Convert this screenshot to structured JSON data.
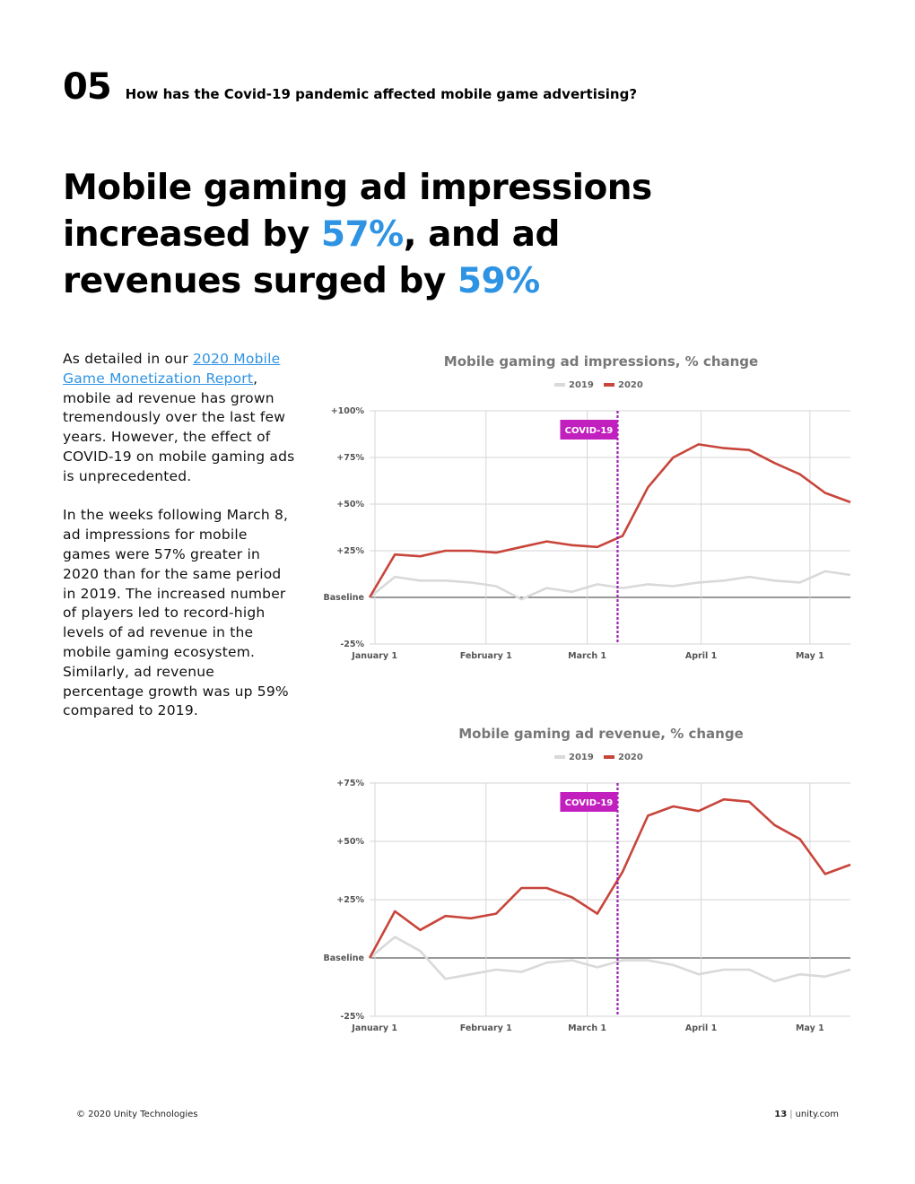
{
  "section": {
    "number": "05",
    "question": "How has the Covid-19 pandemic affected mobile game advertising?"
  },
  "headline": {
    "part1": "Mobile gaming ad impressions increased by ",
    "highlight1": "57%",
    "part2": ", and ad revenues surged by ",
    "highlight2": "59%"
  },
  "body": {
    "p1_prefix": "As detailed in our ",
    "p1_link": "2020 Mobile Game Monetization Report",
    "p1_suffix": ", mobile ad revenue has grown tremendously over the last few years. However, the effect of COVID-19 on mobile gaming ads is unprecedented.",
    "p2": "In the weeks following March 8, ad impressions for mobile games were 57% greater in 2020 than for the same period in 2019. The increased number of players led to record-high levels of ad revenue in the mobile gaming ecosystem. Similarly, ad revenue percentage growth was up 59% compared to 2019."
  },
  "chart_data": [
    {
      "type": "line",
      "title": "Mobile gaming ad impressions, % change",
      "legend": [
        "2019",
        "2020"
      ],
      "legend_position": "top-center",
      "ytick_labels": [
        "+100%",
        "+75%",
        "+50%",
        "+25%",
        "Baseline",
        "-25%"
      ],
      "ytick_values": [
        100,
        75,
        50,
        25,
        0,
        -25
      ],
      "ylim": [
        -25,
        100
      ],
      "xtick_labels": [
        "January 1",
        "February 1",
        "March 1",
        "April 1",
        "May 1"
      ],
      "xtick_weeks": [
        0.2,
        4.6,
        8.6,
        13.1,
        17.4
      ],
      "xlim": [
        0,
        19
      ],
      "annotation": {
        "label": "COVID-19",
        "week": 9.8
      },
      "x_weeks": [
        0,
        1,
        2,
        3,
        4,
        5,
        6,
        7,
        8,
        9,
        10,
        11,
        12,
        13,
        14,
        15,
        16,
        17,
        18,
        19
      ],
      "series": [
        {
          "name": "2019",
          "color": "#d9d9d9",
          "values": [
            0,
            11,
            9,
            9,
            8,
            6,
            -1,
            5,
            3,
            7,
            5,
            7,
            6,
            8,
            9,
            11,
            9,
            8,
            14,
            12
          ]
        },
        {
          "name": "2020",
          "color": "#c8453b",
          "values": [
            0,
            23,
            22,
            25,
            25,
            24,
            27,
            30,
            28,
            27,
            33,
            59,
            75,
            82,
            80,
            79,
            72,
            66,
            56,
            51
          ]
        }
      ],
      "grid": true
    },
    {
      "type": "line",
      "title": "Mobile gaming ad revenue, % change",
      "legend": [
        "2019",
        "2020"
      ],
      "legend_position": "top-center",
      "ytick_labels": [
        "+75%",
        "+50%",
        "+25%",
        "Baseline",
        "-25%"
      ],
      "ytick_values": [
        75,
        50,
        25,
        0,
        -25
      ],
      "ylim": [
        -25,
        75
      ],
      "xtick_labels": [
        "January 1",
        "February 1",
        "March 1",
        "April 1",
        "May 1"
      ],
      "xtick_weeks": [
        0.2,
        4.6,
        8.6,
        13.1,
        17.4
      ],
      "xlim": [
        0,
        19
      ],
      "annotation": {
        "label": "COVID-19",
        "week": 9.8
      },
      "x_weeks": [
        0,
        1,
        2,
        3,
        4,
        5,
        6,
        7,
        8,
        9,
        10,
        11,
        12,
        13,
        14,
        15,
        16,
        17,
        18,
        19
      ],
      "series": [
        {
          "name": "2019",
          "color": "#d9d9d9",
          "values": [
            0,
            9,
            3,
            -9,
            -7,
            -5,
            -6,
            -2,
            -1,
            -4,
            -1,
            -1,
            -3,
            -7,
            -5,
            -5,
            -10,
            -7,
            -8,
            -5
          ]
        },
        {
          "name": "2020",
          "color": "#c8453b",
          "values": [
            0,
            20,
            12,
            18,
            17,
            19,
            30,
            30,
            26,
            19,
            37,
            61,
            65,
            63,
            68,
            67,
            57,
            51,
            36,
            40
          ]
        }
      ],
      "grid": true
    }
  ],
  "footer": {
    "copyright": "© 2020 Unity Technologies",
    "page": "13",
    "separator": "|",
    "site": "unity.com"
  }
}
